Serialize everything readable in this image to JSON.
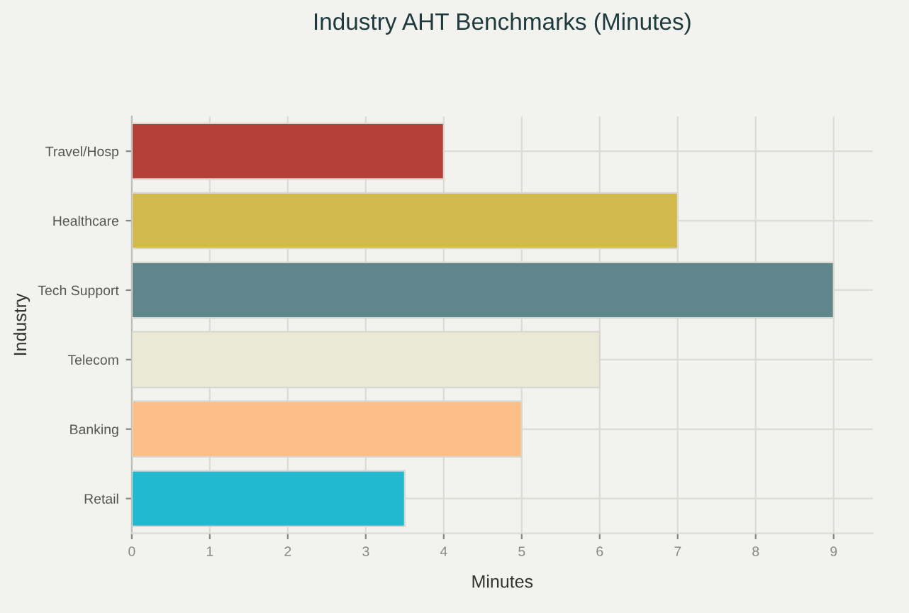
{
  "chart_data": {
    "type": "bar",
    "orientation": "horizontal",
    "title": "Industry AHT Benchmarks (Minutes)",
    "xlabel": "Minutes",
    "ylabel": "Industry",
    "categories": [
      "Travel/Hosp",
      "Healthcare",
      "Tech Support",
      "Telecom",
      "Banking",
      "Retail"
    ],
    "values": [
      4,
      7,
      9,
      6,
      5,
      3.5
    ],
    "colors": [
      "#b5403b",
      "#d2b94b",
      "#5e868b",
      "#eae9d6",
      "#fdbf87",
      "#21b9cf"
    ],
    "xlim": [
      0,
      9.5
    ],
    "xticks": [
      0,
      1,
      2,
      3,
      4,
      5,
      6,
      7,
      8,
      9
    ],
    "grid": true,
    "legend": false
  }
}
